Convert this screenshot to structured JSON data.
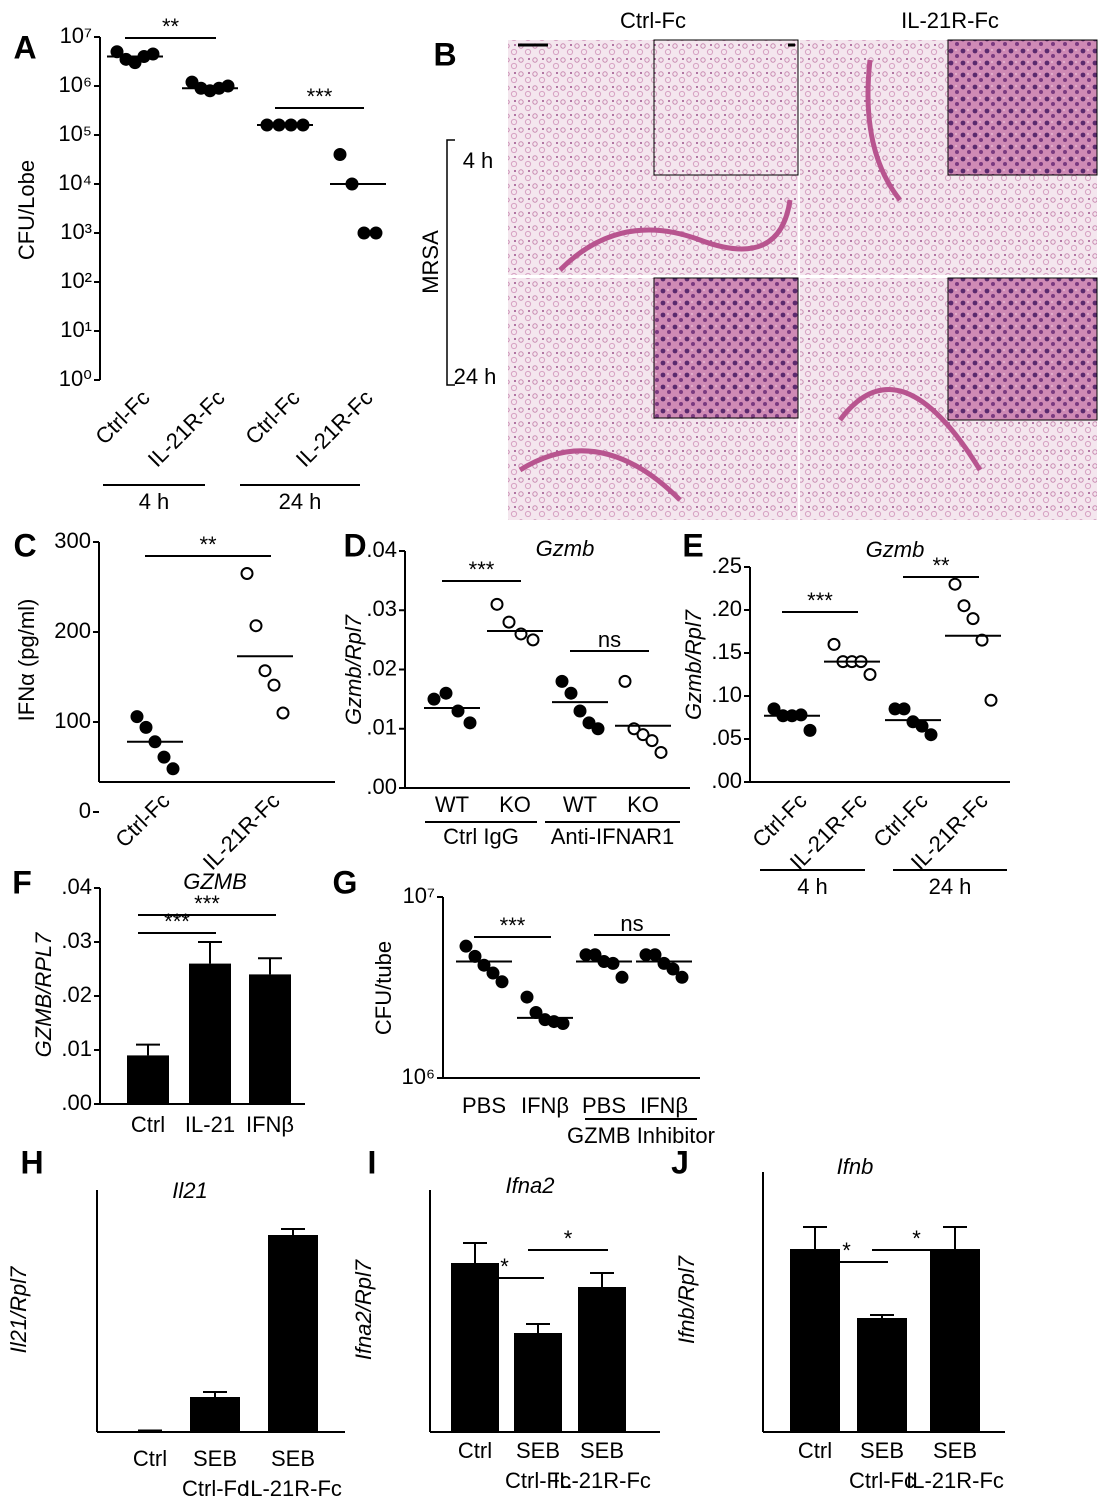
{
  "chart_data": [
    {
      "panel": "A",
      "type": "scatter",
      "ylabel": "CFU/Lobe",
      "log": true,
      "color": "#000000",
      "ylim": [
        1,
        10000000
      ],
      "yticks": [
        {
          "value": 1,
          "label": "10⁰"
        },
        {
          "value": 10,
          "label": "10¹"
        },
        {
          "value": 100,
          "label": "10²"
        },
        {
          "value": 1000,
          "label": "10³"
        },
        {
          "value": 10000,
          "label": "10⁴"
        },
        {
          "value": 100000,
          "label": "10⁵"
        },
        {
          "value": 1000000,
          "label": "10⁶"
        },
        {
          "value": 10000000,
          "label": "10⁷"
        }
      ],
      "categories": [
        "Ctrl-Fc",
        "IL-21R-Fc",
        "Ctrl-Fc",
        "IL-21R-Fc"
      ],
      "markers": [
        "filled",
        "filled",
        "filled",
        "filled"
      ],
      "points": [
        [
          5000000,
          3500000,
          3000000,
          4000000,
          4500000
        ],
        [
          1200000,
          900000,
          800000,
          900000,
          1000000
        ],
        [
          160000,
          160000,
          160000,
          160000
        ],
        [
          40000,
          10000,
          1000,
          1000
        ]
      ],
      "means": [
        4000000,
        900000,
        160000,
        10000
      ],
      "groups": [
        {
          "label": "4 h",
          "from": 0,
          "to": 1
        },
        {
          "label": "24 h",
          "from": 2,
          "to": 3
        }
      ],
      "comparisons": [
        {
          "from": 0,
          "to": 1,
          "label": "**"
        },
        {
          "from": 2,
          "to": 3,
          "label": "***"
        }
      ]
    },
    {
      "panel": "C",
      "type": "scatter",
      "ylabel": "IFNα (pg/ml)",
      "log": false,
      "color": "#000000",
      "ylim": [
        0,
        300
      ],
      "yticks": [
        0,
        100,
        200,
        300
      ],
      "categories": [
        "Ctrl-Fc",
        "IL-21R-Fc"
      ],
      "markers": [
        "filled",
        "open"
      ],
      "points": [
        [
          106,
          94,
          78,
          61,
          48
        ],
        [
          265,
          207,
          157,
          141,
          110
        ]
      ],
      "means": [
        78,
        173
      ],
      "comparisons": [
        {
          "from": 0,
          "to": 1,
          "label": "**"
        }
      ]
    },
    {
      "panel": "D",
      "type": "scatter",
      "title": "Gzmb",
      "ylabel": "Gzmb/Rpl7",
      "log": false,
      "color": "#000000",
      "ylim": [
        0,
        0.04
      ],
      "yticks": [
        {
          "value": 0,
          "label": ".00"
        },
        {
          "value": 0.01,
          "label": ".01"
        },
        {
          "value": 0.02,
          "label": ".02"
        },
        {
          "value": 0.03,
          "label": ".03"
        },
        {
          "value": 0.04,
          "label": ".04"
        }
      ],
      "categories": [
        "WT",
        "KO",
        "WT",
        "KO"
      ],
      "markers": [
        "filled",
        "open",
        "filled",
        "open"
      ],
      "points": [
        [
          0.015,
          0.016,
          0.013,
          0.011
        ],
        [
          0.031,
          0.028,
          0.026,
          0.025
        ],
        [
          0.018,
          0.016,
          0.013,
          0.011,
          0.01
        ],
        [
          0.018,
          0.01,
          0.009,
          0.008,
          0.006
        ]
      ],
      "means": [
        0.0135,
        0.0265,
        0.0145,
        0.0105
      ],
      "groups": [
        {
          "label": "Ctrl IgG",
          "from": 0,
          "to": 1
        },
        {
          "label": "Anti-IFNAR1",
          "from": 2,
          "to": 3
        }
      ],
      "comparisons": [
        {
          "from": 0,
          "to": 1,
          "label": "***"
        },
        {
          "from": 2,
          "to": 3,
          "label": "ns"
        }
      ]
    },
    {
      "panel": "E",
      "type": "scatter",
      "title": "Gzmb",
      "ylabel": "Gzmb/Rpl7",
      "log": false,
      "color": "#000000",
      "ylim": [
        0,
        0.25
      ],
      "yticks": [
        {
          "value": 0,
          "label": ".00"
        },
        {
          "value": 0.05,
          "label": ".05"
        },
        {
          "value": 0.1,
          "label": ".10"
        },
        {
          "value": 0.15,
          "label": ".15"
        },
        {
          "value": 0.2,
          "label": ".20"
        },
        {
          "value": 0.25,
          "label": ".25"
        }
      ],
      "categories": [
        "Ctrl-Fc",
        "IL-21R-Fc",
        "Ctrl-Fc",
        "IL-21R-Fc"
      ],
      "markers": [
        "filled",
        "open",
        "filled",
        "open"
      ],
      "points": [
        [
          0.085,
          0.077,
          0.077,
          0.078,
          0.06
        ],
        [
          0.16,
          0.14,
          0.14,
          0.14,
          0.125
        ],
        [
          0.085,
          0.085,
          0.07,
          0.065,
          0.055
        ],
        [
          0.23,
          0.205,
          0.19,
          0.165,
          0.095
        ]
      ],
      "means": [
        0.077,
        0.14,
        0.072,
        0.17
      ],
      "groups": [
        {
          "label": "4 h",
          "from": 0,
          "to": 1
        },
        {
          "label": "24 h",
          "from": 2,
          "to": 3
        }
      ],
      "comparisons": [
        {
          "from": 0,
          "to": 1,
          "label": "***"
        },
        {
          "from": 2,
          "to": 3,
          "label": "**"
        }
      ]
    },
    {
      "panel": "F",
      "type": "bar",
      "title": "GZMB",
      "ylabel": "GZMB/RPL7",
      "color": "#000000",
      "ylim": [
        0,
        0.04
      ],
      "yticks": [
        {
          "value": 0,
          "label": ".00"
        },
        {
          "value": 0.01,
          "label": ".01"
        },
        {
          "value": 0.02,
          "label": ".02"
        },
        {
          "value": 0.03,
          "label": ".03"
        },
        {
          "value": 0.04,
          "label": ".04"
        }
      ],
      "categories": [
        "Ctrl",
        "IL-21",
        "IFNβ"
      ],
      "values": [
        0.009,
        0.026,
        0.024
      ],
      "errors": [
        0.002,
        0.004,
        0.003
      ],
      "comparisons": [
        {
          "from": 0,
          "to": 1,
          "label": "***"
        },
        {
          "from": 0,
          "to": 2,
          "label": "***"
        }
      ]
    },
    {
      "panel": "G",
      "type": "scatter",
      "ylabel": "CFU/tube",
      "log": true,
      "color": "#000000",
      "ylim": [
        1000000,
        10000000
      ],
      "yticks": [
        {
          "value": 1000000,
          "label": "10⁶"
        },
        {
          "value": 10000000,
          "label": "10⁷"
        }
      ],
      "categories": [
        "PBS",
        "IFNβ",
        "PBS",
        "IFNβ"
      ],
      "markers": [
        "filled",
        "filled",
        "filled",
        "filled"
      ],
      "points": [
        [
          5350000,
          4700000,
          4200000,
          3800000,
          3400000
        ],
        [
          2800000,
          2300000,
          2100000,
          2050000,
          2000000
        ],
        [
          4800000,
          4800000,
          4400000,
          4300000,
          3600000
        ],
        [
          4800000,
          4800000,
          4300000,
          4000000,
          3600000
        ]
      ],
      "means": [
        4400000,
        2150000,
        4400000,
        4400000
      ],
      "groups": [
        {
          "label": "GZMB Inhibitor",
          "from": 2,
          "to": 3
        }
      ],
      "comparisons": [
        {
          "from": 0,
          "to": 1,
          "label": "***"
        },
        {
          "from": 2,
          "to": 3,
          "label": "ns"
        }
      ]
    },
    {
      "panel": "H",
      "type": "bar",
      "title": "Il21",
      "ylabel": "Il21/Rpl7",
      "color": "#000000",
      "ylim": [
        0,
        1
      ],
      "categories": [
        "Ctrl",
        "SEB",
        "SEB"
      ],
      "subcategories": [
        null,
        "Ctrl-Fc",
        "IL-21R-Fc"
      ],
      "values": [
        0.004,
        0.14,
        0.788
      ],
      "errors": [
        0.002,
        0.02,
        0.024
      ],
      "comparisons": []
    },
    {
      "panel": "I",
      "type": "bar",
      "title": "Ifna2",
      "ylabel": "Ifna2/Rpl7",
      "color": "#000000",
      "ylim": [
        0,
        1
      ],
      "categories": [
        "Ctrl",
        "SEB",
        "SEB"
      ],
      "subcategories": [
        null,
        "Ctrl-Fc",
        "IL-21R-Fc"
      ],
      "values": [
        0.676,
        0.396,
        0.58
      ],
      "errors": [
        0.08,
        0.036,
        0.056
      ],
      "comparisons": [
        {
          "from": 0,
          "to": 1,
          "label": "*"
        },
        {
          "from": 1,
          "to": 2,
          "label": "*"
        }
      ]
    },
    {
      "panel": "J",
      "type": "bar",
      "title": "Ifnb",
      "ylabel": "Ifnb/Rpl7",
      "color": "#000000",
      "ylim": [
        0,
        1
      ],
      "categories": [
        "Ctrl",
        "SEB",
        "SEB"
      ],
      "subcategories": [
        null,
        "Ctrl-Fc",
        "IL-21R-Fc"
      ],
      "values": [
        0.732,
        0.456,
        0.732
      ],
      "errors": [
        0.088,
        0.012,
        0.088
      ],
      "comparisons": [
        {
          "from": 0,
          "to": 1,
          "label": "*"
        },
        {
          "from": 1,
          "to": 2,
          "label": "*"
        }
      ]
    }
  ],
  "histology": {
    "panel": "B",
    "columns": [
      "Ctrl-Fc",
      "IL-21R-Fc"
    ],
    "rows": [
      "4 h",
      "24 h"
    ],
    "row_group": "MRSA"
  }
}
